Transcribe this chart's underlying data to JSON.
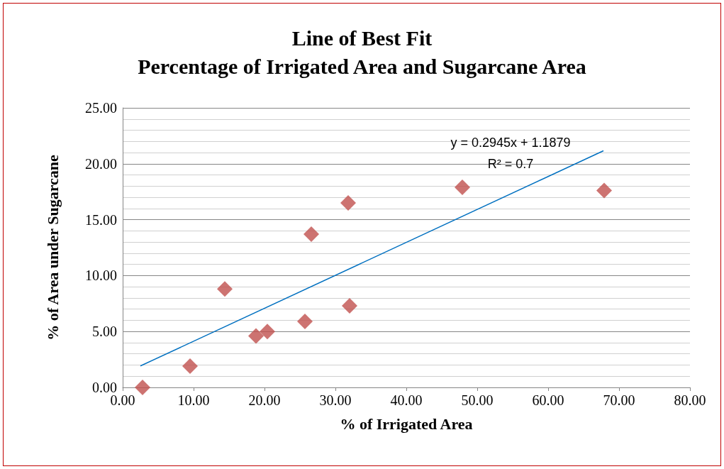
{
  "chart_data": {
    "type": "scatter",
    "title": "Line of Best Fit",
    "subtitle": "Percentage of Irrigated Area and Sugarcane Area",
    "xlabel": "% of Irrigated Area",
    "ylabel": "% of Area under Sugarcane",
    "x": [
      2.8,
      9.5,
      14.4,
      18.8,
      20.4,
      25.7,
      26.6,
      31.8,
      32.0,
      47.9,
      67.9
    ],
    "series": [
      {
        "color": "#c0504d",
        "marker": "diamond",
        "values": [
          0,
          1.9,
          8.8,
          4.6,
          5.0,
          5.9,
          13.7,
          16.5,
          7.3,
          17.9,
          17.6
        ]
      },
      {
        "type": "line",
        "color": "#0070c0",
        "marker": "none",
        "x": [
          2.5,
          67.8
        ],
        "values": [
          1.92,
          21.16
        ]
      }
    ],
    "xlim": [
      0,
      80
    ],
    "xticks": [
      {
        "value": 0,
        "label": "0.00"
      },
      {
        "value": 10,
        "label": "10.00"
      },
      {
        "value": 20,
        "label": "20.00"
      },
      {
        "value": 30,
        "label": "30.00"
      },
      {
        "value": 40,
        "label": "40.00"
      },
      {
        "value": 50,
        "label": "50.00"
      },
      {
        "value": 60,
        "label": "60.00"
      },
      {
        "value": 70,
        "label": "70.00"
      },
      {
        "value": 80,
        "label": "80.00"
      }
    ],
    "ylim": [
      0,
      25
    ],
    "yticks": [
      {
        "value": 0,
        "label": "0.00"
      },
      {
        "value": 5,
        "label": "5.00"
      },
      {
        "value": 10,
        "label": "10.00"
      },
      {
        "value": 15,
        "label": "15.00"
      },
      {
        "value": 20,
        "label": "20.00"
      },
      {
        "value": 25,
        "label": "25.00"
      }
    ],
    "annotations": [
      "y = 0.2945x + 1.1879",
      "R² = 0.7"
    ],
    "grid": "y"
  }
}
